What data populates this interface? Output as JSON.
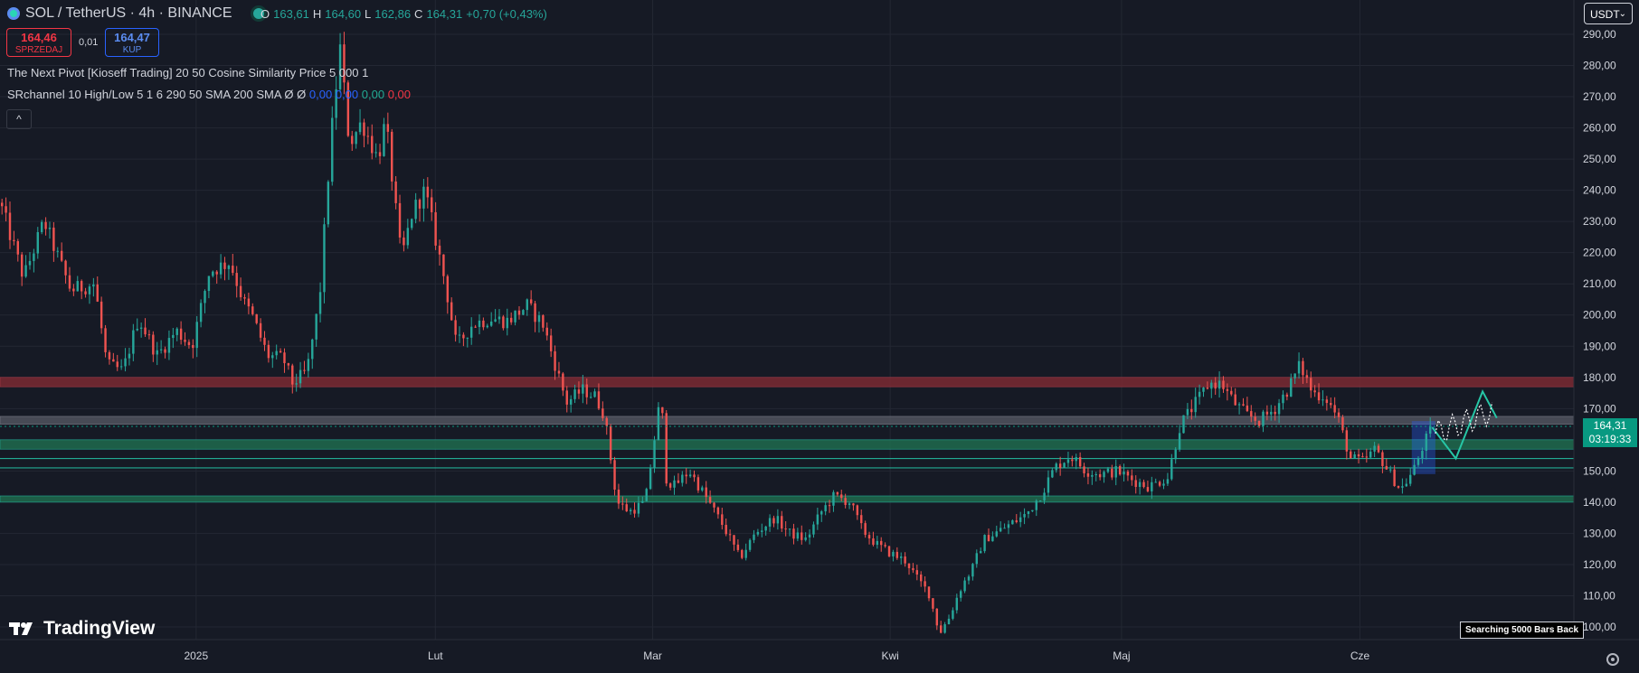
{
  "header": {
    "symbol": "SOL / TetherUS · 4h · BINANCE",
    "ohlc": [
      {
        "label": "O",
        "value": "163,61"
      },
      {
        "label": "H",
        "value": "164,60"
      },
      {
        "label": "L",
        "value": "162,86"
      },
      {
        "label": "C",
        "value": "164,31"
      }
    ],
    "change": "+0,70 (+0,43%)"
  },
  "trade": {
    "sell_price": "164,46",
    "sell_label": "SPRZEDAJ",
    "spread": "0,01",
    "buy_price": "164,47",
    "buy_label": "KUP"
  },
  "indicators": {
    "line1": "The Next Pivot [Kioseff Trading] 20 50 Cosine Similarity Price 5 000 1",
    "line2_prefix": "SRchannel 10 High/Low 5 1 6 290 50 SMA 200 SMA  Ø  Ø",
    "values": [
      "0,00",
      "0,00",
      "0,00",
      "0,00"
    ],
    "value_colors": [
      "#2962ff",
      "#2962ff",
      "#22ab94",
      "#f23645"
    ],
    "collapse_icon": "^"
  },
  "currency": "USDT",
  "price_scale": [
    "290,00",
    "280,00",
    "270,00",
    "260,00",
    "250,00",
    "240,00",
    "230,00",
    "220,00",
    "210,00",
    "200,00",
    "190,00",
    "180,00",
    "170,00",
    "160,00",
    "150,00",
    "140,00",
    "130,00",
    "120,00",
    "110,00",
    "100,00"
  ],
  "last_price": {
    "value": "164,31",
    "countdown": "03:19:33"
  },
  "time_axis": [
    "2025",
    "Lut",
    "Mar",
    "Kwi",
    "Maj",
    "Cze"
  ],
  "brand": "TradingView",
  "search_label": "Searching 5000 Bars Back",
  "colors": {
    "background": "#161a25",
    "up": "#26a69a",
    "down": "#ef5350",
    "resistance_zone": "#7a2a33",
    "support_zone": "#1e6b4d",
    "accent": "#089981"
  },
  "chart_data": {
    "type": "candlestick",
    "symbol": "SOL / TetherUS",
    "interval": "4h",
    "y_ticks": [
      290,
      280,
      270,
      260,
      250,
      240,
      230,
      220,
      210,
      200,
      190,
      180,
      170,
      160,
      150,
      140,
      130,
      120,
      110,
      100
    ],
    "ylim": [
      91,
      305
    ],
    "x_ticks": [
      {
        "label": "2025",
        "x": 0.1246
      },
      {
        "label": "Lut",
        "x": 0.2766
      },
      {
        "label": "Mar",
        "x": 0.4147
      },
      {
        "label": "Kwi",
        "x": 0.5656
      },
      {
        "label": "Maj",
        "x": 0.7126
      },
      {
        "label": "Cze",
        "x": 0.8641
      }
    ],
    "x_range": [
      0,
      1
    ],
    "path": [
      [
        0.0,
        236
      ],
      [
        0.015,
        212
      ],
      [
        0.028,
        230
      ],
      [
        0.045,
        208
      ],
      [
        0.06,
        210
      ],
      [
        0.068,
        184
      ],
      [
        0.078,
        182
      ],
      [
        0.088,
        199
      ],
      [
        0.1,
        187
      ],
      [
        0.112,
        195
      ],
      [
        0.122,
        190
      ],
      [
        0.133,
        214
      ],
      [
        0.146,
        217
      ],
      [
        0.155,
        204
      ],
      [
        0.16,
        200
      ],
      [
        0.17,
        187
      ],
      [
        0.18,
        186
      ],
      [
        0.186,
        178
      ],
      [
        0.195,
        182
      ],
      [
        0.203,
        205
      ],
      [
        0.21,
        255
      ],
      [
        0.216,
        286
      ],
      [
        0.222,
        255
      ],
      [
        0.23,
        262
      ],
      [
        0.24,
        250
      ],
      [
        0.245,
        262
      ],
      [
        0.255,
        218
      ],
      [
        0.262,
        233
      ],
      [
        0.27,
        240
      ],
      [
        0.283,
        210
      ],
      [
        0.29,
        190
      ],
      [
        0.3,
        197
      ],
      [
        0.312,
        199
      ],
      [
        0.322,
        198
      ],
      [
        0.335,
        203
      ],
      [
        0.345,
        197
      ],
      [
        0.36,
        172
      ],
      [
        0.37,
        176
      ],
      [
        0.378,
        174
      ],
      [
        0.384,
        168
      ],
      [
        0.392,
        140
      ],
      [
        0.4,
        137
      ],
      [
        0.41,
        140
      ],
      [
        0.42,
        175
      ],
      [
        0.423,
        148
      ],
      [
        0.428,
        145
      ],
      [
        0.438,
        150
      ],
      [
        0.448,
        142
      ],
      [
        0.46,
        132
      ],
      [
        0.47,
        122
      ],
      [
        0.48,
        130
      ],
      [
        0.492,
        135
      ],
      [
        0.502,
        130
      ],
      [
        0.512,
        128
      ],
      [
        0.522,
        137
      ],
      [
        0.53,
        142
      ],
      [
        0.54,
        140
      ],
      [
        0.548,
        131
      ],
      [
        0.558,
        126
      ],
      [
        0.568,
        123
      ],
      [
        0.576,
        121
      ],
      [
        0.582,
        116
      ],
      [
        0.59,
        111
      ],
      [
        0.597,
        98
      ],
      [
        0.603,
        103
      ],
      [
        0.61,
        112
      ],
      [
        0.618,
        119
      ],
      [
        0.625,
        128
      ],
      [
        0.632,
        130
      ],
      [
        0.642,
        133
      ],
      [
        0.652,
        136
      ],
      [
        0.662,
        143
      ],
      [
        0.67,
        151
      ],
      [
        0.68,
        155
      ],
      [
        0.69,
        150
      ],
      [
        0.7,
        149
      ],
      [
        0.71,
        150
      ],
      [
        0.72,
        147
      ],
      [
        0.73,
        145
      ],
      [
        0.742,
        148
      ],
      [
        0.75,
        165
      ],
      [
        0.76,
        172
      ],
      [
        0.768,
        178
      ],
      [
        0.776,
        178
      ],
      [
        0.784,
        172
      ],
      [
        0.792,
        168
      ],
      [
        0.8,
        166
      ],
      [
        0.81,
        170
      ],
      [
        0.818,
        176
      ],
      [
        0.826,
        184
      ],
      [
        0.834,
        175
      ],
      [
        0.842,
        174
      ],
      [
        0.85,
        167
      ],
      [
        0.858,
        154
      ],
      [
        0.866,
        153
      ],
      [
        0.874,
        157
      ],
      [
        0.882,
        150
      ],
      [
        0.89,
        144
      ],
      [
        0.898,
        150
      ],
      [
        0.904,
        158
      ],
      [
        0.91,
        164
      ]
    ],
    "zones": [
      {
        "kind": "resistance",
        "from": 177,
        "to": 180,
        "color": "#7a2a33"
      },
      {
        "kind": "neutral",
        "from": 165,
        "to": 167.5,
        "color": "#50545e"
      },
      {
        "kind": "support",
        "from": 157,
        "to": 160,
        "color": "#1e6b4d"
      },
      {
        "kind": "support-line",
        "at": 154,
        "color": "#22ab94"
      },
      {
        "kind": "support-line",
        "at": 151,
        "color": "#22ab94"
      },
      {
        "kind": "support",
        "from": 140,
        "to": 142,
        "color": "#1e6b4d"
      }
    ],
    "projection": [
      [
        0.91,
        164
      ],
      [
        0.925,
        154
      ],
      [
        0.942,
        175.5
      ],
      [
        0.951,
        167
      ]
    ],
    "pivot_box": {
      "x0": 0.897,
      "x1": 0.912,
      "y0": 149,
      "y1": 166
    },
    "last_price": 164.31
  }
}
